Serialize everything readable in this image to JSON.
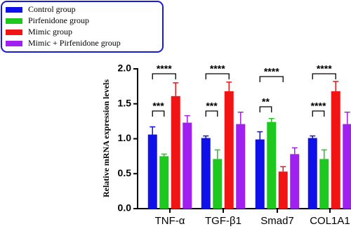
{
  "chart_data": {
    "type": "bar",
    "ylabel": "Relative mRNA expression levels",
    "categories": [
      "TNF-α",
      "TGF-β1",
      "Smad7",
      "COL1A1"
    ],
    "series": [
      {
        "name": "Control group",
        "color": "#1010e8",
        "values": [
          1.06,
          1.01,
          0.99,
          1.01
        ],
        "errors": [
          0.11,
          0.03,
          0.11,
          0.03
        ]
      },
      {
        "name": "Pirfenidone group",
        "color": "#1ec81e",
        "values": [
          0.75,
          0.71,
          1.24,
          0.71
        ],
        "errors": [
          0.03,
          0.13,
          0.05,
          0.13
        ]
      },
      {
        "name": "Mimic group",
        "color": "#f01414",
        "values": [
          1.61,
          1.68,
          0.53,
          1.68
        ],
        "errors": [
          0.19,
          0.13,
          0.07,
          0.14
        ]
      },
      {
        "name": "Mimic + Pirfenidone group",
        "color": "#a020f0",
        "values": [
          1.23,
          1.21,
          0.78,
          1.21
        ],
        "errors": [
          0.1,
          0.17,
          0.09,
          0.17
        ]
      }
    ],
    "ylim": [
      0,
      2
    ],
    "yticks": [
      {
        "value": 0,
        "label": "0.0"
      },
      {
        "value": 0.5,
        "label": "0.5"
      },
      {
        "value": 1,
        "label": "1.0"
      },
      {
        "value": 1.5,
        "label": "1.5"
      },
      {
        "value": 2,
        "label": "2.0"
      }
    ],
    "annotations": [
      {
        "label": "****"
      },
      {
        "label": "***"
      },
      {
        "label": "****"
      },
      {
        "label": "***"
      },
      {
        "label": "****"
      },
      {
        "label": "**"
      },
      {
        "label": "****"
      },
      {
        "label": "****"
      }
    ],
    "legend": "top-left"
  }
}
